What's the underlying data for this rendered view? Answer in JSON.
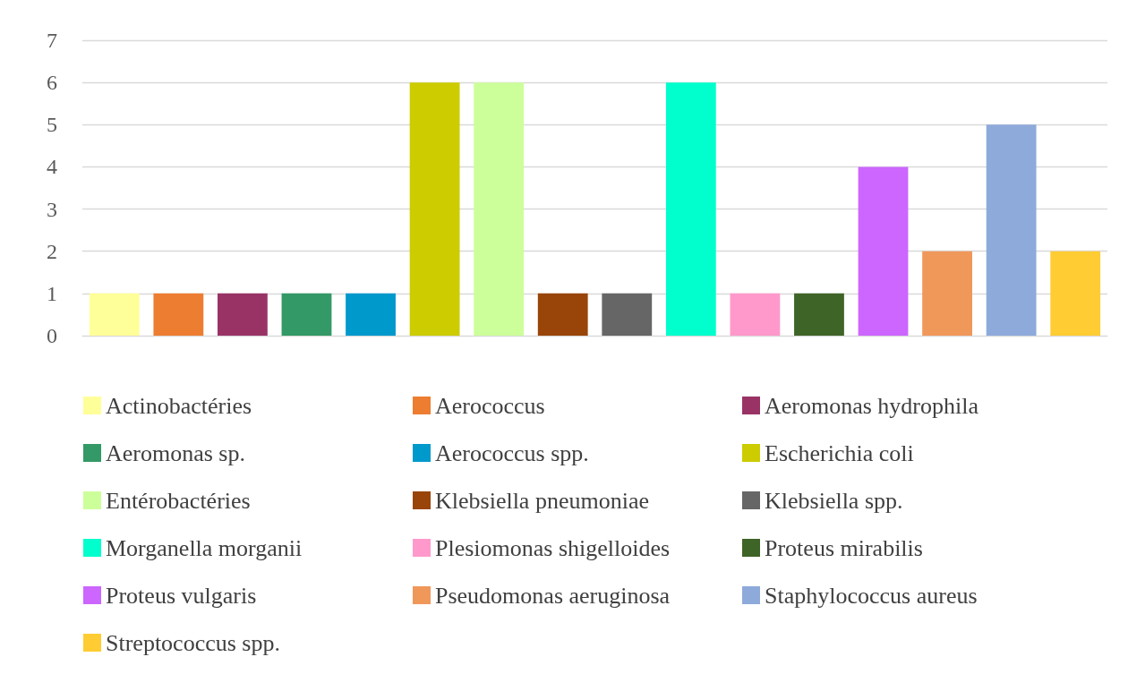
{
  "chart_data": {
    "type": "bar",
    "categories": [
      null,
      null,
      null,
      null,
      null,
      null,
      null,
      null,
      null,
      null,
      null,
      null,
      null,
      null,
      null,
      null
    ],
    "series": [
      {
        "name": "Actinobactéries",
        "color": "#ffff99",
        "values": [
          1,
          null,
          null,
          null,
          null,
          null,
          null,
          null,
          null,
          null,
          null,
          null,
          null,
          null,
          null,
          null
        ]
      },
      {
        "name": "Aerococcus",
        "color": "#ed7d31",
        "values": [
          null,
          1,
          null,
          null,
          null,
          null,
          null,
          null,
          null,
          null,
          null,
          null,
          null,
          null,
          null,
          null
        ]
      },
      {
        "name": "Aeromonas hydrophila",
        "color": "#993366",
        "values": [
          null,
          null,
          1,
          null,
          null,
          null,
          null,
          null,
          null,
          null,
          null,
          null,
          null,
          null,
          null,
          null
        ]
      },
      {
        "name": "Aeromonas sp.",
        "color": "#339966",
        "values": [
          null,
          null,
          null,
          1,
          null,
          null,
          null,
          null,
          null,
          null,
          null,
          null,
          null,
          null,
          null,
          null
        ]
      },
      {
        "name": "Aerococcus spp.",
        "color": "#0099cc",
        "values": [
          null,
          null,
          null,
          null,
          1,
          null,
          null,
          null,
          null,
          null,
          null,
          null,
          null,
          null,
          null,
          null
        ]
      },
      {
        "name": "Escherichia coli",
        "color": "#cccc00",
        "values": [
          null,
          null,
          null,
          null,
          null,
          6,
          null,
          null,
          null,
          null,
          null,
          null,
          null,
          null,
          null,
          null
        ]
      },
      {
        "name": "Entérobactéries",
        "color": "#ccff99",
        "values": [
          null,
          null,
          null,
          null,
          null,
          null,
          6,
          null,
          null,
          null,
          null,
          null,
          null,
          null,
          null,
          null
        ]
      },
      {
        "name": "Klebsiella pneumoniae",
        "color": "#994409",
        "values": [
          null,
          null,
          null,
          null,
          null,
          null,
          null,
          1,
          null,
          null,
          null,
          null,
          null,
          null,
          null,
          null
        ]
      },
      {
        "name": "Klebsiella spp.",
        "color": "#666666",
        "values": [
          null,
          null,
          null,
          null,
          null,
          null,
          null,
          null,
          1,
          null,
          null,
          null,
          null,
          null,
          null,
          null
        ]
      },
      {
        "name": "Morganella morganii",
        "color": "#00ffcc",
        "values": [
          null,
          null,
          null,
          null,
          null,
          null,
          null,
          null,
          null,
          6,
          null,
          null,
          null,
          null,
          null,
          null
        ]
      },
      {
        "name": "Plesiomonas shigelloides",
        "color": "#ff99cc",
        "values": [
          null,
          null,
          null,
          null,
          null,
          null,
          null,
          null,
          null,
          null,
          1,
          null,
          null,
          null,
          null,
          null
        ]
      },
      {
        "name": "Proteus mirabilis",
        "color": "#3f6427",
        "values": [
          null,
          null,
          null,
          null,
          null,
          null,
          null,
          null,
          null,
          null,
          null,
          1,
          null,
          null,
          null,
          null
        ]
      },
      {
        "name": "Proteus vulgaris",
        "color": "#cc66ff",
        "values": [
          null,
          null,
          null,
          null,
          null,
          null,
          null,
          null,
          null,
          null,
          null,
          null,
          4,
          null,
          null,
          null
        ]
      },
      {
        "name": "Pseudomonas aeruginosa",
        "color": "#f0975a",
        "values": [
          null,
          null,
          null,
          null,
          null,
          null,
          null,
          null,
          null,
          null,
          null,
          null,
          null,
          2,
          null,
          null
        ]
      },
      {
        "name": "Staphylococcus aureus",
        "color": "#8eaadb",
        "values": [
          null,
          null,
          null,
          null,
          null,
          null,
          null,
          null,
          null,
          null,
          null,
          null,
          null,
          null,
          5,
          null
        ]
      },
      {
        "name": "Streptococcus spp.",
        "color": "#ffcc33",
        "values": [
          null,
          null,
          null,
          null,
          null,
          null,
          null,
          null,
          null,
          null,
          null,
          null,
          null,
          null,
          null,
          2
        ]
      }
    ],
    "ylim": [
      0,
      7
    ],
    "yticks": [
      0,
      1,
      2,
      3,
      4,
      5,
      6,
      7
    ],
    "grid": "y",
    "legend": "bottom"
  }
}
